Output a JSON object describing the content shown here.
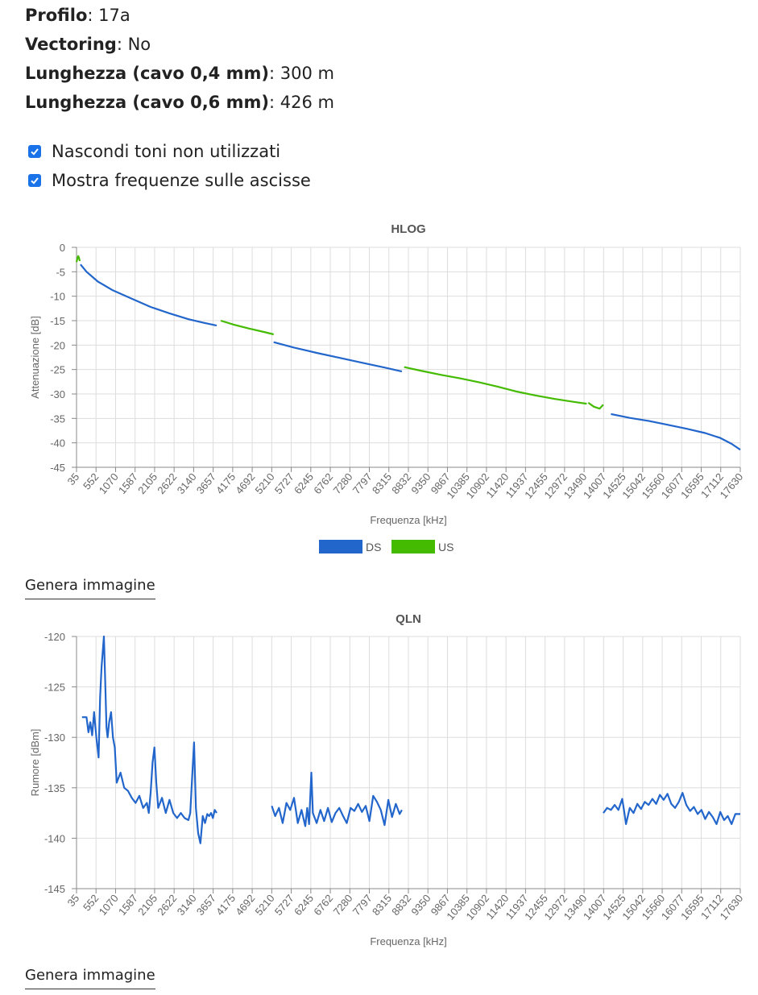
{
  "info": {
    "profile_label": "Profilo",
    "profile_value": "17a",
    "vectoring_label": "Vectoring",
    "vectoring_value": "No",
    "length04_label": "Lunghezza (cavo 0,4 mm)",
    "length04_value": "300 m",
    "length06_label": "Lunghezza (cavo 0,6 mm)",
    "length06_value": "426 m"
  },
  "options": {
    "hide_unused": {
      "label": "Nascondi toni non utilizzati",
      "checked": true
    },
    "show_freq": {
      "label": "Mostra frequenze sulle ascisse",
      "checked": true
    }
  },
  "buttons": {
    "generate_image": "Genera immagine"
  },
  "colors": {
    "ds": "#2266cc",
    "us": "#44bb00",
    "grid": "#dddddd",
    "axis": "#888888"
  },
  "chart_data": [
    {
      "type": "line",
      "title": "HLOG",
      "xlabel": "Frequenza [kHz]",
      "ylabel": "Attenuazione [dB]",
      "ylim": [
        -45,
        0
      ],
      "yticks": [
        0,
        -5,
        -10,
        -15,
        -20,
        -25,
        -30,
        -35,
        -40,
        -45
      ],
      "xlim": [
        35,
        17630
      ],
      "xticks": [
        35,
        552,
        1070,
        1587,
        2105,
        2622,
        3140,
        3657,
        4175,
        4692,
        5210,
        5727,
        6245,
        6762,
        7280,
        7797,
        8315,
        8832,
        9350,
        9867,
        10385,
        10902,
        11420,
        11937,
        12455,
        12972,
        13490,
        14007,
        14525,
        15042,
        15560,
        16077,
        16595,
        17112,
        17630
      ],
      "grid": true,
      "legend": "bottom",
      "series": [
        {
          "name": "DS",
          "color": "#2266cc",
          "x": [
            140,
            300,
            600,
            1000,
            1500,
            2000,
            2500,
            3000,
            3500,
            3750
          ],
          "y": [
            -3.5,
            -5,
            -7,
            -8.8,
            -10.5,
            -12.2,
            -13.5,
            -14.7,
            -15.6,
            -16
          ]
        },
        {
          "name": "US",
          "color": "#44bb00",
          "x": [
            35,
            60,
            80,
            100,
            120
          ],
          "y": [
            -3,
            -2.2,
            -1.8,
            -2.1,
            -2.8
          ]
        },
        {
          "name": "US",
          "color": "#44bb00",
          "x": [
            3860,
            4200,
            4600,
            5000,
            5260
          ],
          "y": [
            -15,
            -15.8,
            -16.6,
            -17.3,
            -17.8
          ]
        },
        {
          "name": "DS",
          "color": "#2266cc",
          "x": [
            5260,
            5800,
            6400,
            7000,
            7600,
            8200,
            8660
          ],
          "y": [
            -19.4,
            -20.5,
            -21.6,
            -22.6,
            -23.6,
            -24.6,
            -25.4
          ]
        },
        {
          "name": "US",
          "color": "#44bb00",
          "x": [
            8720,
            9200,
            9700,
            10200,
            10700,
            11200,
            11700,
            12200,
            12700,
            13200,
            13560
          ],
          "y": [
            -24.5,
            -25.3,
            -26.1,
            -26.8,
            -27.6,
            -28.5,
            -29.5,
            -30.3,
            -31,
            -31.6,
            -32
          ]
        },
        {
          "name": "US",
          "color": "#44bb00",
          "x": [
            13600,
            13750,
            13900,
            14000
          ],
          "y": [
            -31.8,
            -32.6,
            -33,
            -32.2
          ]
        },
        {
          "name": "DS",
          "color": "#2266cc",
          "x": [
            14200,
            14700,
            15200,
            15700,
            16200,
            16700,
            17100,
            17400,
            17630
          ],
          "y": [
            -34.1,
            -34.9,
            -35.5,
            -36.3,
            -37.1,
            -38,
            -39,
            -40.2,
            -41.4
          ]
        }
      ]
    },
    {
      "type": "line",
      "title": "QLN",
      "xlabel": "Frequenza [kHz]",
      "ylabel": "Rumore [dBm]",
      "ylim": [
        -145,
        -120
      ],
      "yticks": [
        -120,
        -125,
        -130,
        -135,
        -140,
        -145
      ],
      "xlim": [
        35,
        17630
      ],
      "xticks": [
        35,
        552,
        1070,
        1587,
        2105,
        2622,
        3140,
        3657,
        4175,
        4692,
        5210,
        5727,
        6245,
        6762,
        7280,
        7797,
        8315,
        8832,
        9350,
        9867,
        10385,
        10902,
        11420,
        11937,
        12455,
        12972,
        13490,
        14007,
        14525,
        15042,
        15560,
        16077,
        16595,
        17112,
        17630
      ],
      "grid": true,
      "series": [
        {
          "name": "DS",
          "color": "#2266cc",
          "x": [
            180,
            300,
            350,
            400,
            450,
            500,
            560,
            620,
            660,
            700,
            760,
            800,
            830,
            860,
            900,
            950,
            1000,
            1050,
            1100,
            1200,
            1300,
            1400,
            1500,
            1600,
            1700,
            1800,
            1900,
            1950,
            2000,
            2050,
            2100,
            2150,
            2200,
            2300,
            2400,
            2500,
            2600,
            2700,
            2800,
            2900,
            3000,
            3050,
            3100,
            3150,
            3200,
            3260,
            3320,
            3380,
            3440,
            3500,
            3550,
            3600,
            3650,
            3700,
            3750
          ],
          "y": [
            -128,
            -128,
            -129.5,
            -128.5,
            -129.8,
            -127.5,
            -130,
            -132,
            -126,
            -123,
            -120,
            -125,
            -129,
            -130,
            -128.5,
            -127.5,
            -130,
            -131,
            -134.5,
            -133.5,
            -135,
            -135.3,
            -136,
            -136.5,
            -135.8,
            -137,
            -136.5,
            -137.5,
            -135.5,
            -132.5,
            -131,
            -134.5,
            -137,
            -136,
            -137.5,
            -136.2,
            -137.5,
            -138,
            -137.5,
            -138,
            -138.2,
            -137.5,
            -134,
            -130.5,
            -137,
            -139.5,
            -140.5,
            -137.8,
            -138.5,
            -137.6,
            -137.8,
            -137.5,
            -138,
            -137.2,
            -137.5
          ]
        },
        {
          "name": "DS",
          "color": "#2266cc",
          "x": [
            5210,
            5300,
            5400,
            5500,
            5600,
            5700,
            5800,
            5900,
            6000,
            6100,
            6150,
            6200,
            6260,
            6300,
            6400,
            6500,
            6600,
            6700,
            6800,
            6900,
            7000,
            7100,
            7200,
            7300,
            7400,
            7500,
            7600,
            7700,
            7800,
            7900,
            8000,
            8100,
            8200,
            8300,
            8400,
            8500,
            8600,
            8660
          ],
          "y": [
            -136.8,
            -137.8,
            -137,
            -138.5,
            -136.5,
            -137.2,
            -136,
            -138.5,
            -137.2,
            -138.8,
            -137,
            -138.6,
            -133.5,
            -137.5,
            -138.5,
            -137.2,
            -138.3,
            -137,
            -138.4,
            -137.5,
            -137,
            -137.8,
            -138.5,
            -137,
            -137.3,
            -136.6,
            -137.4,
            -136.8,
            -138.3,
            -135.8,
            -136.4,
            -137.2,
            -138.7,
            -136.2,
            -137.9,
            -136.6,
            -137.6,
            -137.2
          ]
        },
        {
          "name": "DS",
          "color": "#2266cc",
          "x": [
            14000,
            14100,
            14200,
            14300,
            14400,
            14500,
            14550,
            14600,
            14700,
            14800,
            14900,
            15000,
            15100,
            15200,
            15300,
            15400,
            15500,
            15600,
            15700,
            15800,
            15900,
            16000,
            16100,
            16200,
            16300,
            16400,
            16500,
            16600,
            16700,
            16800,
            16900,
            17000,
            17100,
            17200,
            17300,
            17400,
            17500,
            17630
          ],
          "y": [
            -137.5,
            -137,
            -137.2,
            -136.7,
            -137.2,
            -136.1,
            -137.3,
            -138.6,
            -137,
            -137.5,
            -136.6,
            -137.1,
            -136.4,
            -136.7,
            -136.1,
            -136.6,
            -135.7,
            -136.2,
            -135.6,
            -136.6,
            -137,
            -136.4,
            -135.5,
            -136.7,
            -137.3,
            -136.9,
            -137.6,
            -137.2,
            -138.1,
            -137.4,
            -137.9,
            -138.6,
            -137.4,
            -138.2,
            -137.8,
            -138.6,
            -137.6,
            -137.6
          ]
        }
      ]
    }
  ]
}
